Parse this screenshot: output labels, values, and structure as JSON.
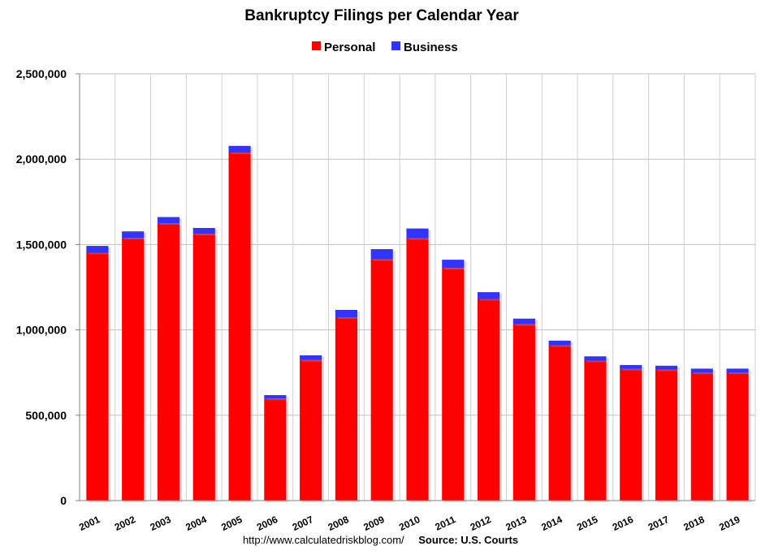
{
  "chart_data": {
    "type": "bar",
    "stacked": true,
    "title": "Bankruptcy Filings per Calendar Year",
    "categories": [
      "2001",
      "2002",
      "2003",
      "2004",
      "2005",
      "2006",
      "2007",
      "2008",
      "2009",
      "2010",
      "2011",
      "2012",
      "2013",
      "2014",
      "2015",
      "2016",
      "2017",
      "2018",
      "2019"
    ],
    "series": [
      {
        "name": "Personal",
        "color": "#ff0000",
        "values": [
          1452000,
          1539000,
          1625000,
          1563000,
          2039000,
          598000,
          823000,
          1074000,
          1413000,
          1537000,
          1363000,
          1181000,
          1033000,
          910000,
          820000,
          771000,
          767000,
          751000,
          751000
        ]
      },
      {
        "name": "Business",
        "color": "#3333ff",
        "values": [
          40000,
          38000,
          36000,
          34000,
          39000,
          20000,
          28000,
          43000,
          60000,
          57000,
          48000,
          40000,
          33000,
          27000,
          25000,
          23000,
          23000,
          22000,
          22000
        ]
      }
    ],
    "y_ticks": [
      "0",
      "500,000",
      "1,000,000",
      "1,500,000",
      "2,000,000",
      "2,500,000"
    ],
    "ylim": [
      0,
      2500000
    ],
    "grid": true,
    "legend_position": "top-center"
  },
  "footer": {
    "url": "http://www.calculatedriskblog.com/",
    "source": "Source: U.S. Courts"
  }
}
